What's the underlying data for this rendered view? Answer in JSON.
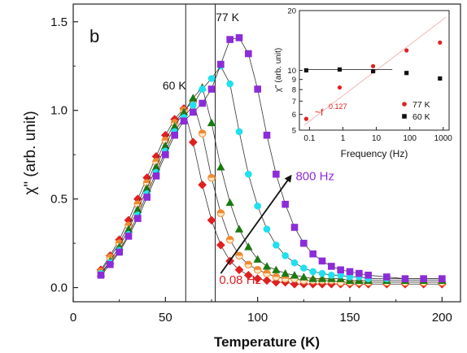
{
  "chart_data": [
    {
      "type": "scatter",
      "panel_label": "b",
      "xlabel": "Temperature (K)",
      "ylabel": "χ\" (arb. unit)",
      "xlim": [
        0,
        210
      ],
      "ylim": [
        -0.08,
        1.6
      ],
      "xticks": [
        0,
        50,
        100,
        150,
        200
      ],
      "yticks": [
        0.0,
        0.5,
        1.0,
        1.5
      ],
      "xtick_labels": [
        "0",
        "50",
        "100",
        "150",
        "200"
      ],
      "ytick_labels": [
        "0.0",
        "0.5",
        "1.0",
        "1.5"
      ],
      "grid": false,
      "lines_connect_points": true,
      "x": [
        15,
        20,
        25,
        30,
        35,
        40,
        45,
        50,
        55,
        60,
        65,
        70,
        75,
        80,
        85,
        90,
        95,
        100,
        105,
        110,
        115,
        120,
        125,
        130,
        135,
        140,
        145,
        150,
        155,
        160,
        170,
        180,
        190,
        200
      ],
      "series": [
        {
          "color": "#e02020",
          "marker": "diamond",
          "values": [
            0.1,
            0.18,
            0.27,
            0.38,
            0.5,
            0.62,
            0.74,
            0.86,
            0.95,
            1.01,
            0.82,
            0.58,
            0.38,
            0.24,
            0.15,
            0.1,
            0.07,
            0.05,
            0.04,
            0.03,
            0.03,
            0.02,
            0.02,
            0.02,
            0.02,
            0.02,
            0.02,
            0.02,
            0.02,
            0.02,
            0.02,
            0.02,
            0.02,
            0.02
          ]
        },
        {
          "color": "#f08a30",
          "marker": "half-circle",
          "values": [
            0.09,
            0.17,
            0.25,
            0.35,
            0.47,
            0.59,
            0.71,
            0.83,
            0.93,
            1.0,
            1.05,
            0.87,
            0.62,
            0.42,
            0.27,
            0.18,
            0.13,
            0.1,
            0.08,
            0.06,
            0.05,
            0.05,
            0.04,
            0.04,
            0.04,
            0.04,
            0.03,
            0.03,
            0.03,
            0.03,
            0.03,
            0.03,
            0.03,
            0.03
          ]
        },
        {
          "color": "#1a7a10",
          "marker": "triangle",
          "values": [
            0.08,
            0.15,
            0.23,
            0.33,
            0.44,
            0.56,
            0.68,
            0.8,
            0.91,
            0.99,
            1.07,
            1.13,
            0.93,
            0.68,
            0.48,
            0.33,
            0.23,
            0.16,
            0.12,
            0.1,
            0.08,
            0.07,
            0.06,
            0.05,
            0.05,
            0.05,
            0.05,
            0.04,
            0.04,
            0.04,
            0.04,
            0.04,
            0.04,
            0.04
          ]
        },
        {
          "color": "#20e0f0",
          "marker": "circle",
          "values": [
            0.08,
            0.14,
            0.21,
            0.3,
            0.41,
            0.53,
            0.65,
            0.77,
            0.88,
            0.96,
            1.03,
            1.12,
            1.18,
            1.25,
            1.15,
            0.88,
            0.64,
            0.46,
            0.33,
            0.24,
            0.18,
            0.14,
            0.11,
            0.09,
            0.08,
            0.07,
            0.07,
            0.06,
            0.06,
            0.05,
            0.05,
            0.05,
            0.05,
            0.05
          ]
        },
        {
          "color": "#8c2cd8",
          "marker": "square",
          "values": [
            0.07,
            0.13,
            0.2,
            0.29,
            0.39,
            0.51,
            0.63,
            0.75,
            0.86,
            0.94,
            0.99,
            1.04,
            1.12,
            1.26,
            1.4,
            1.41,
            1.32,
            1.12,
            0.86,
            0.64,
            0.47,
            0.34,
            0.25,
            0.19,
            0.15,
            0.12,
            0.1,
            0.09,
            0.08,
            0.07,
            0.06,
            0.05,
            0.05,
            0.05
          ]
        }
      ],
      "vertical_lines": [
        {
          "x": 61,
          "label": "60 K"
        },
        {
          "x": 77,
          "label": "77 K"
        }
      ],
      "annotations": {
        "arrow": {
          "from": [
            80,
            0.08
          ],
          "to": [
            118,
            0.63
          ]
        },
        "low_label": "0.08 Hz",
        "low_label_color": "#e02020",
        "high_label": "800 Hz",
        "high_label_color": "#8c2cd8"
      }
    },
    {
      "type": "scatter",
      "xlabel": "Frequency (Hz)",
      "ylabel": "χ\" (arb. unit)",
      "xscale": "log",
      "yscale": "log",
      "xlim": [
        0.05,
        1500
      ],
      "ylim": [
        5,
        20
      ],
      "xticks": [
        0.1,
        1,
        10,
        100,
        1000
      ],
      "xtick_labels": [
        "0.1",
        "1",
        "10",
        "100",
        "1000"
      ],
      "yticks": [
        5,
        6,
        7,
        8,
        9,
        10,
        20
      ],
      "ytick_labels": [
        "5",
        "6",
        "7",
        "8",
        "9",
        "10",
        "20"
      ],
      "series": [
        {
          "name": "77 K",
          "color": "#e02020",
          "marker": "circle",
          "x": [
            0.08,
            0.8,
            8,
            80,
            800
          ],
          "values": [
            5.7,
            8.2,
            10.5,
            12.6,
            13.8
          ]
        },
        {
          "name": "60 K",
          "color": "#111111",
          "marker": "square",
          "x": [
            0.08,
            0.8,
            8,
            80,
            800
          ],
          "values": [
            10.0,
            10.1,
            9.9,
            9.7,
            9.1
          ]
        }
      ],
      "fit_label": "~f",
      "fit_exponent": "0.127",
      "fit_color": "#e02020",
      "fit_line": {
        "from": [
          0.07,
          5.3
        ],
        "to": [
          1200,
          18.5
        ]
      },
      "ref_line": {
        "from": [
          0.07,
          10.1
        ],
        "to": [
          30,
          10.1
        ]
      },
      "legend_position": "bottom-right"
    }
  ]
}
